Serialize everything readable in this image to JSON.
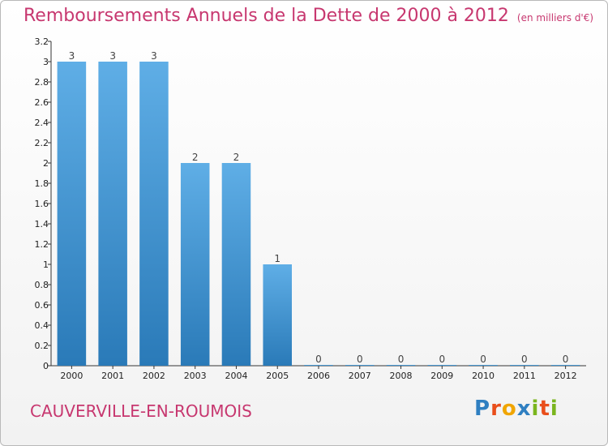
{
  "header": {
    "title": "Remboursements Annuels de la Dette de 2000 à 2012",
    "unit": "(en milliers d'€)"
  },
  "footer": {
    "commune": "CAUVERVILLE-EN-ROUMOIS"
  },
  "logo": {
    "letters": [
      "P",
      "r",
      "o",
      "x",
      "i",
      "t",
      "i"
    ],
    "colors": [
      "#2f7fc1",
      "#e94e1b",
      "#f0a500",
      "#2f7fc1",
      "#7ab51d",
      "#e94e1b",
      "#7ab51d"
    ]
  },
  "colors": {
    "bar_top": "#5faee6",
    "bar_bottom": "#2a7ab8",
    "title": "#c7376f"
  },
  "chart_data": {
    "type": "bar",
    "categories": [
      "2000",
      "2001",
      "2002",
      "2003",
      "2004",
      "2005",
      "2006",
      "2007",
      "2008",
      "2009",
      "2010",
      "2011",
      "2012"
    ],
    "values": [
      3,
      3,
      3,
      2,
      2,
      1,
      0,
      0,
      0,
      0,
      0,
      0,
      0
    ],
    "data_labels": [
      "3",
      "3",
      "3",
      "2",
      "2",
      "1",
      "0",
      "0",
      "0",
      "0",
      "0",
      "0",
      "0"
    ],
    "ylim": [
      0,
      3.2
    ],
    "yticks": [
      {
        "value": 0,
        "label": "0"
      },
      {
        "value": 0.2,
        "label": "0.2"
      },
      {
        "value": 0.4,
        "label": "0.4"
      },
      {
        "value": 0.6,
        "label": "0.6"
      },
      {
        "value": 0.8,
        "label": "0.8"
      },
      {
        "value": 1,
        "label": "1"
      },
      {
        "value": 1.2,
        "label": "1.2"
      },
      {
        "value": 1.4,
        "label": "1.4"
      },
      {
        "value": 1.6,
        "label": "1.6"
      },
      {
        "value": 1.8,
        "label": "1.8"
      },
      {
        "value": 2,
        "label": "2"
      },
      {
        "value": 2.2,
        "label": "2.2"
      },
      {
        "value": 2.4,
        "label": "2.4"
      },
      {
        "value": 2.6,
        "label": "2.6"
      },
      {
        "value": 2.8,
        "label": "2.8"
      },
      {
        "value": 3,
        "label": "3"
      },
      {
        "value": 3.2,
        "label": "3.2"
      }
    ],
    "grid": false,
    "legend": "none"
  }
}
